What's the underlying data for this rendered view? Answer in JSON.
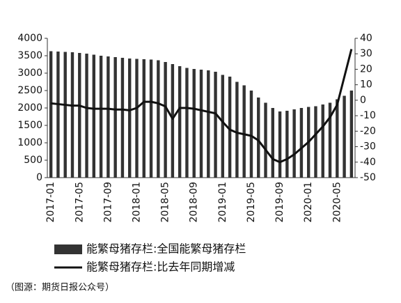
{
  "chart_data": {
    "type": "combo",
    "categories": [
      "2017-01",
      null,
      null,
      null,
      "2017-05",
      null,
      null,
      null,
      "2017-09",
      null,
      null,
      null,
      "2018-01",
      null,
      null,
      null,
      "2018-05",
      null,
      null,
      null,
      "2018-09",
      null,
      null,
      null,
      "2019-01",
      null,
      null,
      null,
      "2019-05",
      null,
      null,
      null,
      "2019-09",
      null,
      null,
      null,
      "2020-01",
      null,
      null,
      null,
      "2020-05",
      null,
      null
    ],
    "series": [
      {
        "name": "能繁母猪存栏:全国能繁母猪存栏",
        "type": "bar",
        "color": "#333333",
        "values": [
          3630,
          3620,
          3610,
          3600,
          3580,
          3560,
          3530,
          3500,
          3480,
          3460,
          3440,
          3420,
          3410,
          3400,
          3390,
          3370,
          3320,
          3260,
          3200,
          3150,
          3120,
          3100,
          3080,
          3040,
          2950,
          2900,
          2750,
          2650,
          2500,
          2300,
          2150,
          2000,
          1900,
          1920,
          1960,
          2000,
          2030,
          2050,
          2100,
          2150,
          2250,
          2350,
          2500
        ]
      },
      {
        "name": "能繁母猪存栏:比去年同期增减",
        "type": "line",
        "axis": "y2",
        "color": "#111111",
        "values": [
          -2,
          -2.5,
          -3,
          -3.5,
          -3.5,
          -5,
          -5.5,
          -5.5,
          -5.5,
          -6,
          -6,
          -6.5,
          -5,
          -1,
          -1,
          -2,
          -4,
          -12,
          -5,
          -5,
          -5.5,
          -6.5,
          -7.5,
          -8.5,
          -14,
          -19,
          -21,
          -22,
          -23,
          -26,
          -32,
          -38,
          -40,
          -38,
          -35,
          -31,
          -27,
          -22,
          -17,
          -11,
          -3,
          15,
          33
        ]
      }
    ],
    "ylim": [
      0,
      4000
    ],
    "yticks": [
      0,
      500,
      1000,
      1500,
      2000,
      2500,
      3000,
      3500,
      4000
    ],
    "y2lim": [
      -50,
      40
    ],
    "y2ticks": [
      -50,
      -40,
      -30,
      -20,
      -10,
      0,
      10,
      20,
      30,
      40
    ],
    "note": "（图源：期货日报公众号）"
  }
}
